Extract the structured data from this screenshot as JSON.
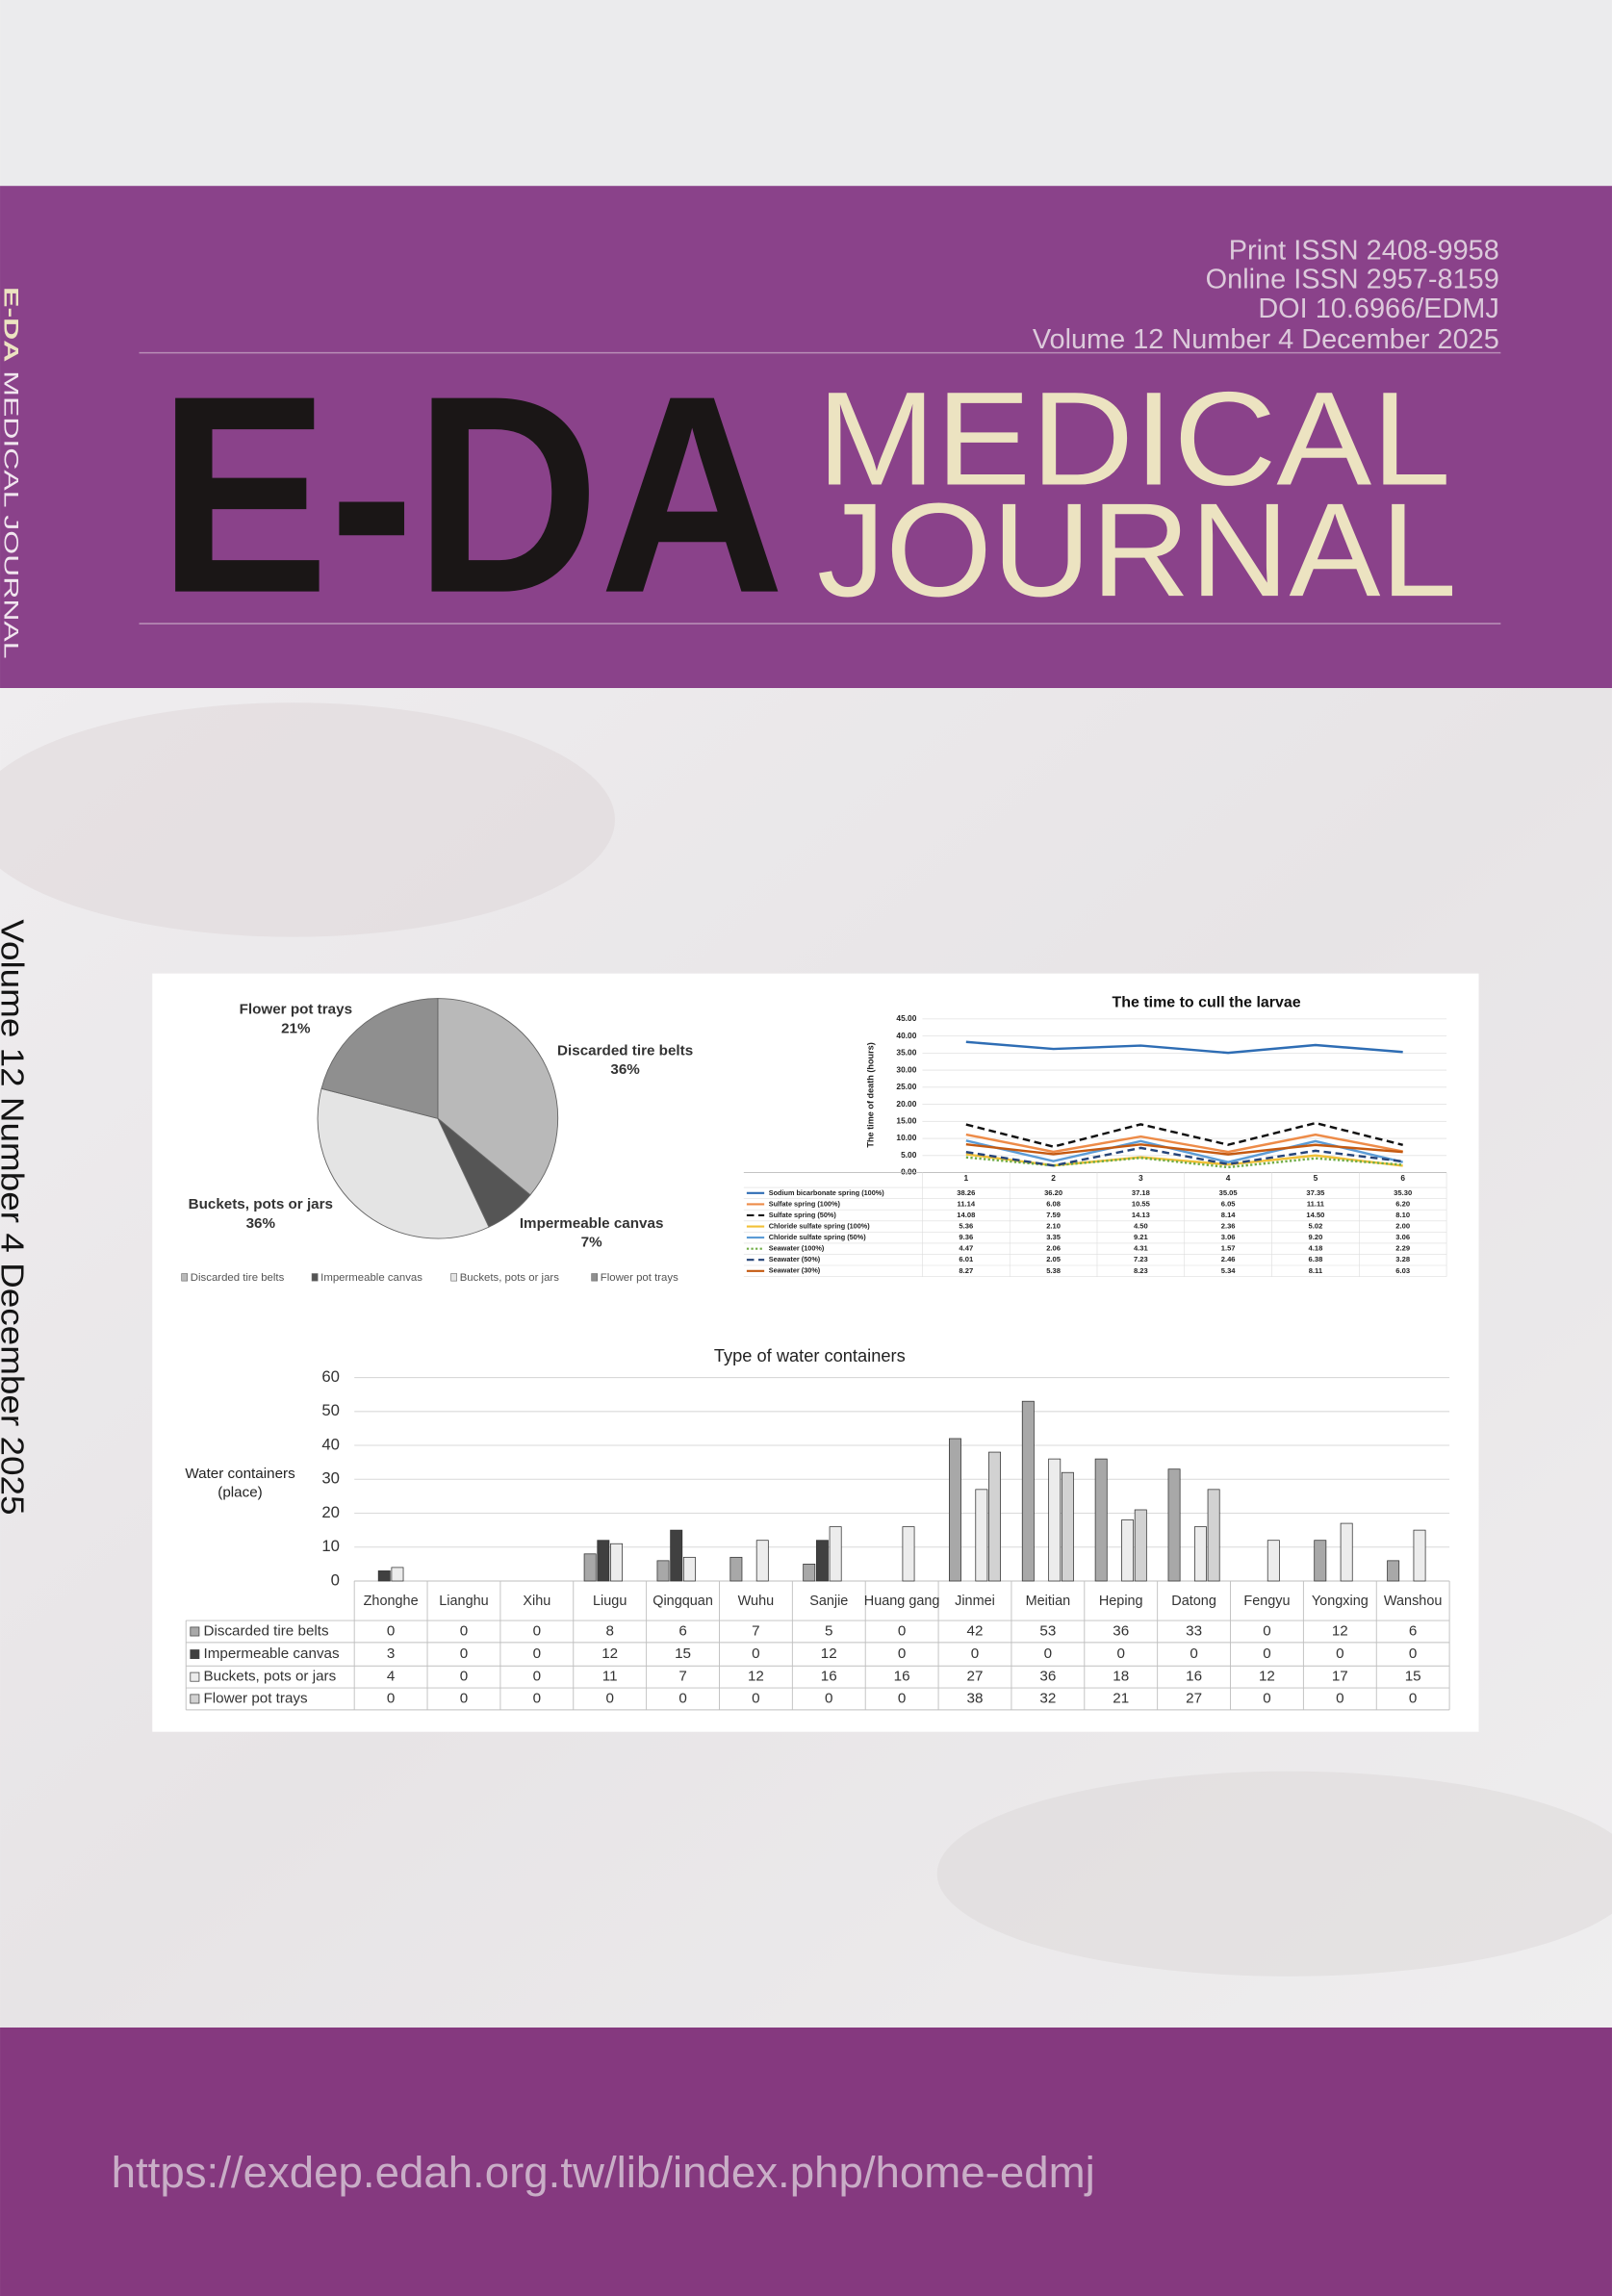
{
  "cover": {
    "issn_print": "Print ISSN  2408-9958",
    "issn_online": "Online ISSN  2957-8159",
    "doi": "DOI  10.6966/EDMJ",
    "volume": "Volume 12 Number 4 December 2025",
    "title_abbr": "E-DA",
    "title_line1": "MEDICAL",
    "title_line2": "JOURNAL",
    "spine_abbr": "E-DA",
    "spine_rest": "MEDICAL JOURNAL",
    "spine_volume": "Volume  12  Number  4  December  2025",
    "url": "https://exdep.edah.org.tw/lib/index.php/home-edmj"
  },
  "chart_data": [
    {
      "type": "pie",
      "categories": [
        "Discarded tire belts",
        "Impermeable canvas",
        "Buckets, pots or jars",
        "Flower pot trays"
      ],
      "values": [
        36,
        7,
        36,
        21
      ],
      "value_labels": [
        "36%",
        "7%",
        "36%",
        "21%"
      ],
      "colors": [
        "#b9b9b9",
        "#555555",
        "#e4e4e4",
        "#8f8f8f"
      ],
      "legend": "bottom"
    },
    {
      "type": "line",
      "title": "The time to cull the larvae",
      "ylabel": "The time of death (hours)",
      "categories": [
        "1",
        "2",
        "3",
        "4",
        "5",
        "6"
      ],
      "ylim": [
        0,
        45
      ],
      "yticks": [
        {
          "value": 0,
          "label": "0.00"
        },
        {
          "value": 5,
          "label": "5.00"
        },
        {
          "value": 10,
          "label": "10.00"
        },
        {
          "value": 15,
          "label": "15.00"
        },
        {
          "value": 20,
          "label": "20.00"
        },
        {
          "value": 25,
          "label": "25.00"
        },
        {
          "value": 30,
          "label": "30.00"
        },
        {
          "value": 35,
          "label": "35.00"
        },
        {
          "value": 40,
          "label": "40.00"
        },
        {
          "value": 45,
          "label": "45.00"
        }
      ],
      "grid": true,
      "series": [
        {
          "name": "Sodium bicarbonate spring (100%)",
          "color": "#2e6db4",
          "style": "solid",
          "values": [
            38.26,
            36.2,
            37.18,
            35.05,
            37.35,
            35.3
          ],
          "value_labels": [
            "38.26",
            "36.20",
            "37.18",
            "35.05",
            "37.35",
            "35.30"
          ]
        },
        {
          "name": "Sulfate spring (100%)",
          "color": "#ed8b48",
          "style": "solid",
          "values": [
            11.14,
            6.08,
            10.55,
            6.05,
            11.11,
            6.2
          ],
          "value_labels": [
            "11.14",
            "6.08",
            "10.55",
            "6.05",
            "11.11",
            "6.20"
          ]
        },
        {
          "name": "Sulfate spring (50%)",
          "color": "#111111",
          "style": "dashed",
          "values": [
            14.08,
            7.59,
            14.13,
            8.14,
            14.5,
            8.1
          ],
          "value_labels": [
            "14.08",
            "7.59",
            "14.13",
            "8.14",
            "14.50",
            "8.10"
          ]
        },
        {
          "name": "Chloride sulfate spring (100%)",
          "color": "#f2c037",
          "style": "solid",
          "values": [
            5.36,
            2.1,
            4.5,
            2.36,
            5.02,
            2.0
          ],
          "value_labels": [
            "5.36",
            "2.10",
            "4.50",
            "2.36",
            "5.02",
            "2.00"
          ]
        },
        {
          "name": "Chloride sulfate spring (50%)",
          "color": "#5b9bd5",
          "style": "solid",
          "values": [
            9.36,
            3.35,
            9.21,
            3.06,
            9.2,
            3.06
          ],
          "value_labels": [
            "9.36",
            "3.35",
            "9.21",
            "3.06",
            "9.20",
            "3.06"
          ]
        },
        {
          "name": "Seawater (100%)",
          "color": "#70ad47",
          "style": "dotted",
          "values": [
            4.47,
            2.06,
            4.31,
            1.57,
            4.18,
            2.29
          ],
          "value_labels": [
            "4.47",
            "2.06",
            "4.31",
            "1.57",
            "4.18",
            "2.29"
          ]
        },
        {
          "name": "Seawater (50%)",
          "color": "#264478",
          "style": "dashed",
          "values": [
            6.01,
            2.05,
            7.23,
            2.46,
            6.38,
            3.28
          ],
          "value_labels": [
            "6.01",
            "2.05",
            "7.23",
            "2.46",
            "6.38",
            "3.28"
          ]
        },
        {
          "name": "Seawater (30%)",
          "color": "#c55a11",
          "style": "solid",
          "values": [
            8.27,
            5.38,
            8.23,
            5.34,
            8.11,
            6.03
          ],
          "value_labels": [
            "8.27",
            "5.38",
            "8.23",
            "5.34",
            "8.11",
            "6.03"
          ]
        }
      ]
    },
    {
      "type": "bar",
      "title": "Type of water containers",
      "ylabel_lines": [
        "Water containers",
        "(place)"
      ],
      "categories": [
        "Zhonghe",
        "Lianghu",
        "Xihu",
        "Liugu",
        "Qingquan",
        "Wuhu",
        "Sanjie",
        "Huang gang",
        "Jinmei",
        "Meitian",
        "Heping",
        "Datong",
        "Fengyu",
        "Yongxing",
        "Wanshou"
      ],
      "ylim": [
        0,
        60
      ],
      "yticks": [
        0,
        10,
        20,
        30,
        40,
        50,
        60
      ],
      "grid": true,
      "series": [
        {
          "name": "Discarded tire belts",
          "color": "#a8a8a8",
          "values": [
            0,
            0,
            0,
            8,
            6,
            7,
            5,
            0,
            42,
            53,
            36,
            33,
            0,
            12,
            6
          ]
        },
        {
          "name": "Impermeable canvas",
          "color": "#404040",
          "values": [
            3,
            0,
            0,
            12,
            15,
            0,
            12,
            0,
            0,
            0,
            0,
            0,
            0,
            0,
            0
          ]
        },
        {
          "name": "Buckets, pots or jars",
          "color": "#ececec",
          "values": [
            4,
            0,
            0,
            11,
            7,
            12,
            16,
            16,
            27,
            36,
            18,
            16,
            12,
            17,
            15
          ]
        },
        {
          "name": "Flower pot trays",
          "color": "#d2d2d2",
          "values": [
            0,
            0,
            0,
            0,
            0,
            0,
            0,
            0,
            38,
            32,
            21,
            27,
            0,
            0,
            0
          ]
        }
      ]
    }
  ]
}
